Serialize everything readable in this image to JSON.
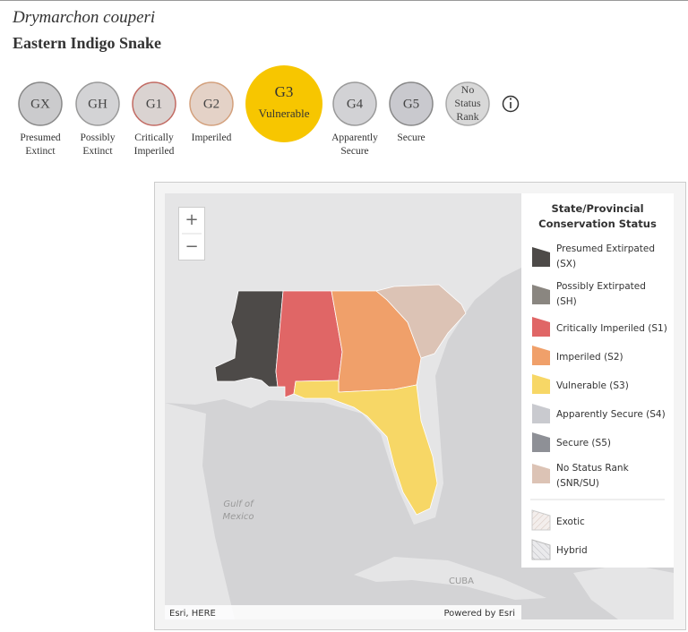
{
  "header": {
    "scientific_name": "Drymarchon couperi",
    "common_name": "Eastern Indigo Snake"
  },
  "statuses": [
    {
      "code": "GX",
      "label": [
        "Presumed",
        "Extinct"
      ]
    },
    {
      "code": "GH",
      "label": [
        "Possibly",
        "Extinct"
      ]
    },
    {
      "code": "G1",
      "label": [
        "Critically",
        "Imperiled"
      ]
    },
    {
      "code": "G2",
      "label": [
        "Imperiled"
      ]
    },
    {
      "code": "G3",
      "label": [
        "Vulnerable"
      ]
    },
    {
      "code": "G4",
      "label": [
        "Apparently",
        "Secure"
      ]
    },
    {
      "code": "G5",
      "label": [
        "Secure"
      ]
    },
    {
      "code": [
        "No",
        "Status",
        "Rank"
      ]
    }
  ],
  "map": {
    "labels": [
      [
        "Gulf of",
        "Mexico"
      ],
      "CUBA"
    ],
    "zoom_in": "+",
    "zoom_out": "−",
    "attribution_left": "Esri, HERE",
    "attribution_right": "Powered by Esri"
  },
  "legend": {
    "title": [
      "State/Provincial",
      "Conservation Status"
    ],
    "items": [
      [
        "Presumed Extirpated",
        "(SX)"
      ],
      [
        "Possibly Extirpated",
        "(SH)"
      ],
      [
        "Critically Imperiled (S1)"
      ],
      [
        "Imperiled (S2)"
      ],
      [
        "Vulnerable (S3)"
      ],
      [
        "Apparently Secure (S4)"
      ],
      [
        "Secure (S5)"
      ],
      [
        "No Status Rank",
        "(SNR/SU)"
      ],
      [
        "Exotic"
      ],
      [
        "Hybrid"
      ]
    ]
  }
}
